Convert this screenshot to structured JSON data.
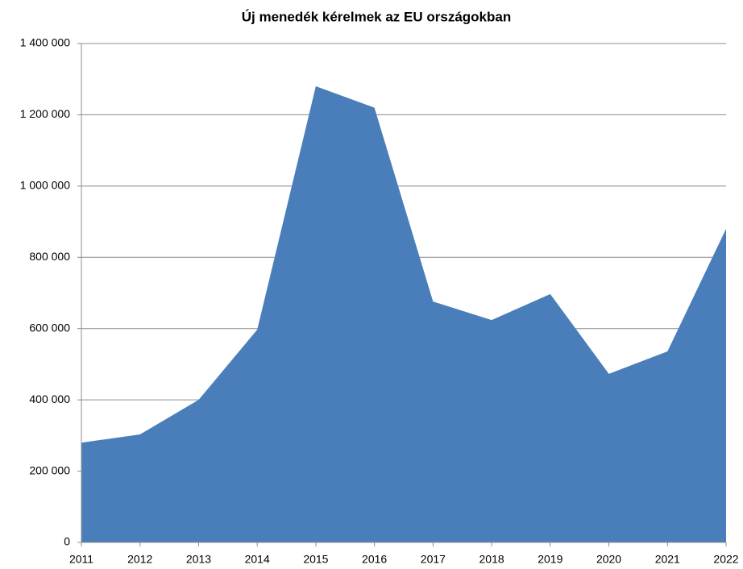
{
  "chart_data": {
    "type": "area",
    "title": "Új menedék kérelmek az EU országokban",
    "categories": [
      "2011",
      "2012",
      "2013",
      "2014",
      "2015",
      "2016",
      "2017",
      "2018",
      "2019",
      "2020",
      "2021",
      "2022"
    ],
    "values": [
      280000,
      303000,
      400000,
      597000,
      1280000,
      1220000,
      676000,
      624000,
      697000,
      473000,
      536000,
      880000
    ],
    "color": "#4a7ebb",
    "ylim": [
      0,
      1400000
    ],
    "yticks": [
      0,
      {
        "value": 200000,
        "label": "200 000"
      },
      {
        "value": 400000,
        "label": "400 000"
      },
      {
        "value": 600000,
        "label": "600 000"
      },
      {
        "value": 800000,
        "label": "800 000"
      },
      {
        "value": 1000000,
        "label": "1 000 000"
      },
      {
        "value": 1200000,
        "label": "1 200 000"
      },
      {
        "value": 1400000,
        "label": "1 400 000"
      }
    ],
    "grid": true
  }
}
